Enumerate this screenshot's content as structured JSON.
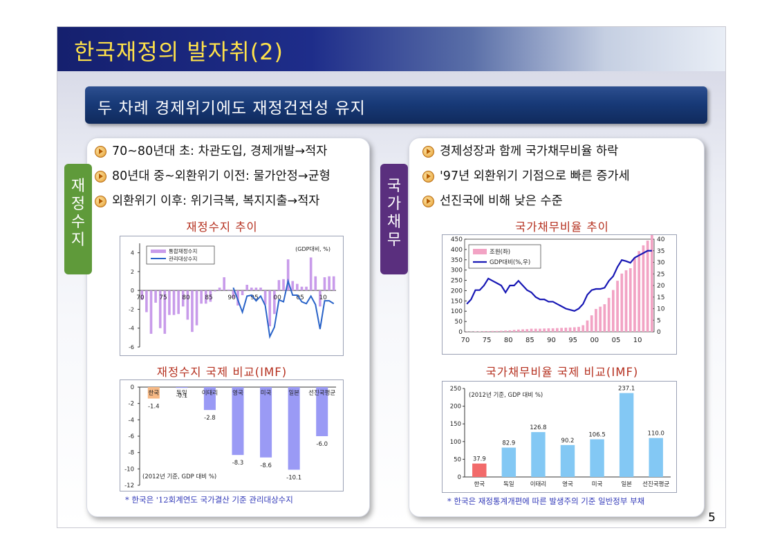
{
  "title": "한국재정의 발자취(2)",
  "subtitle": "두 차례 경제위기에도 재정건전성 유지",
  "page_number": "5",
  "left": {
    "tab_label": [
      "재",
      "정",
      "수",
      "지"
    ],
    "bullets": [
      "70~80년대 초: 차관도입, 경제개발→적자",
      "80년대 중~외환위기 이전: 물가안정→균형",
      "외환위기 이후: 위기극복, 복지지출→적자"
    ],
    "chart1_title": "재정수지 추이",
    "chart2_title": "재정수지 국제 비교(IMF)",
    "footnote": "* 한국은 '12회계연도 국가결산 기준 관리대상수지"
  },
  "right": {
    "tab_label": [
      "국",
      "가",
      "채",
      "무"
    ],
    "bullets": [
      "경제성장과 함께 국가채무비율 하락",
      "'97년 외환위기 기점으로 빠른 증가세",
      "선진국에 비해 낮은 수준"
    ],
    "chart1_title": "국가채무비율 추이",
    "chart2_title": "국가채무비율 국제 비교(IMF)",
    "footnote": "* 한국은 재정통계개편에 따른 발생주의 기준 일반정부 부채"
  },
  "colors": {
    "left_tab": "#5f9a3a",
    "right_tab": "#5a2f7e",
    "fiscal_bar": "#c89bea",
    "managed_line": "#2862c8",
    "debt_bar": "#f2a3c4",
    "debt_line": "#1616b4",
    "korea_neg_bar": "#f7b985",
    "neg_bar": "#9a9af5",
    "korea_pos_bar": "#f26a6a",
    "pos_bar": "#83c8f4"
  },
  "chart_data": [
    {
      "type": "bar",
      "title": "재정수지 추이",
      "unit_note": "(GDP대비, %)",
      "x": [
        1970,
        1971,
        1972,
        1973,
        1974,
        1975,
        1976,
        1977,
        1978,
        1979,
        1980,
        1981,
        1982,
        1983,
        1984,
        1985,
        1986,
        1987,
        1988,
        1989,
        1990,
        1991,
        1992,
        1993,
        1994,
        1995,
        1996,
        1997,
        1998,
        1999,
        2000,
        2001,
        2002,
        2003,
        2004,
        2005,
        2006,
        2007,
        2008,
        2009,
        2010,
        2011,
        2012
      ],
      "x_ticks": [
        1970,
        1975,
        1980,
        1985,
        1990,
        1995,
        2000,
        2005,
        2010
      ],
      "x_tick_labels": [
        "70",
        "75",
        "80",
        "85",
        "90",
        "95",
        "00",
        "05",
        "10"
      ],
      "ylim": [
        -6,
        5
      ],
      "y_ticks": [
        -6,
        -4,
        -2,
        0,
        2,
        4
      ],
      "series": [
        {
          "name": "통합재정수지",
          "kind": "bar",
          "values": [
            -1.0,
            -2.3,
            -4.6,
            -1.3,
            -4.0,
            -4.6,
            -2.6,
            -2.6,
            -2.5,
            -1.7,
            -3.1,
            -4.4,
            -3.7,
            -1.4,
            -1.4,
            -1.2,
            -0.1,
            0.3,
            1.4,
            0.1,
            -0.8,
            -1.6,
            -0.5,
            0.6,
            0.3,
            0.3,
            0.3,
            -1.5,
            -3.8,
            -2.5,
            1.1,
            1.2,
            3.3,
            1.0,
            0.7,
            0.4,
            0.4,
            3.5,
            1.5,
            -1.7,
            1.4,
            1.5,
            1.5
          ]
        },
        {
          "name": "관리대상수지",
          "kind": "line",
          "x": [
            1990,
            1991,
            1992,
            1993,
            1994,
            1995,
            1996,
            1997,
            1998,
            1999,
            2000,
            2001,
            2002,
            2003,
            2004,
            2005,
            2006,
            2007,
            2008,
            2009,
            2010,
            2011,
            2012
          ],
          "values": [
            0.3,
            -1.0,
            -2.3,
            -0.6,
            -0.5,
            -1.1,
            -0.6,
            -1.6,
            -4.9,
            -3.9,
            -1.0,
            -1.2,
            1.0,
            -0.5,
            -0.5,
            -1.2,
            -1.4,
            -0.6,
            -1.5,
            -4.1,
            -1.1,
            -1.1,
            -1.4
          ]
        }
      ]
    },
    {
      "type": "bar",
      "title": "재정수지 국제 비교(IMF)",
      "note": "(2012년 기준, GDP 대비 %)",
      "categories": [
        "한국",
        "독일",
        "이태리",
        "영국",
        "미국",
        "일본",
        "선진국평균"
      ],
      "values": [
        -1.4,
        -0.1,
        -2.8,
        -8.3,
        -8.6,
        -10.1,
        -6.0
      ],
      "value_labels": [
        "-1.4",
        "-0.1",
        "-2.8",
        "-8.3",
        "-8.6",
        "-10.1",
        "-6.0"
      ],
      "ylim": [
        -12,
        0
      ],
      "y_ticks": [
        0,
        -2,
        -4,
        -6,
        -8,
        -10,
        -12
      ]
    },
    {
      "type": "bar",
      "title": "국가채무비율 추이",
      "x": [
        1970,
        1971,
        1972,
        1973,
        1974,
        1975,
        1976,
        1977,
        1978,
        1979,
        1980,
        1981,
        1982,
        1983,
        1984,
        1985,
        1986,
        1987,
        1988,
        1989,
        1990,
        1991,
        1992,
        1993,
        1994,
        1995,
        1996,
        1997,
        1998,
        1999,
        2000,
        2001,
        2002,
        2003,
        2004,
        2005,
        2006,
        2007,
        2008,
        2009,
        2010,
        2011,
        2012,
        2013
      ],
      "x_ticks": [
        1970,
        1975,
        1980,
        1985,
        1990,
        1995,
        2000,
        2005,
        2010
      ],
      "x_tick_labels": [
        "70",
        "75",
        "80",
        "85",
        "90",
        "95",
        "00",
        "05",
        "10"
      ],
      "ylim_left": [
        0,
        450
      ],
      "y_ticks_left": [
        0,
        50,
        100,
        150,
        200,
        250,
        300,
        350,
        400,
        450
      ],
      "ylim_right": [
        0,
        40
      ],
      "y_ticks_right": [
        0,
        5,
        10,
        15,
        20,
        25,
        30,
        35,
        40
      ],
      "series": [
        {
          "name": "조원(좌)",
          "kind": "bar",
          "axis": "left",
          "values": [
            1,
            1,
            2,
            2,
            3,
            3,
            4,
            4,
            5,
            6,
            7,
            9,
            11,
            12,
            13,
            15,
            15,
            15,
            16,
            17,
            17,
            18,
            19,
            20,
            21,
            22,
            24,
            32,
            55,
            80,
            111,
            122,
            134,
            165,
            203,
            248,
            283,
            299,
            309,
            360,
            392,
            420,
            443,
            470
          ]
        },
        {
          "name": "GDP대비(%,우)",
          "kind": "line",
          "axis": "right",
          "values": [
            12,
            14,
            18,
            18,
            20,
            23,
            22,
            21,
            20,
            17,
            20,
            20,
            22,
            20,
            18,
            17,
            15,
            14,
            14,
            13,
            13,
            12,
            11,
            10,
            9.5,
            9,
            10,
            12,
            16,
            18,
            18.5,
            18.5,
            19,
            22,
            24,
            28,
            31,
            30.5,
            29.8,
            32,
            33,
            34,
            35,
            35
          ]
        }
      ]
    },
    {
      "type": "bar",
      "title": "국가채무비율 국제 비교(IMF)",
      "note": "(2012년 기준, GDP 대비 %)",
      "categories": [
        "한국",
        "독일",
        "이태리",
        "영국",
        "미국",
        "일본",
        "선진국평균"
      ],
      "values": [
        37.9,
        82.9,
        126.8,
        90.2,
        106.5,
        237.1,
        110.0
      ],
      "value_labels": [
        "37.9",
        "82.9",
        "126.8",
        "90.2",
        "106.5",
        "237.1",
        "110.0"
      ],
      "ylim": [
        0,
        250
      ],
      "y_ticks": [
        0,
        50,
        100,
        150,
        200,
        250
      ]
    }
  ]
}
